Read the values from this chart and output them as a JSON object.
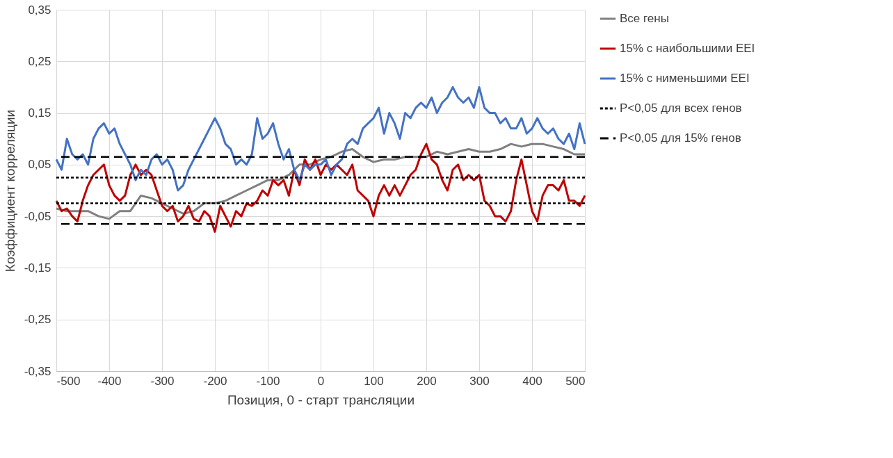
{
  "chart_data": {
    "type": "line",
    "xlabel": "Позиция, 0 - старт трансляции",
    "ylabel": "Коэффициент корреляции",
    "xlim": [
      -500,
      500
    ],
    "xticks": [
      -500,
      -400,
      -300,
      -200,
      -100,
      0,
      100,
      200,
      300,
      400,
      500
    ],
    "ylim": [
      -0.35,
      0.35
    ],
    "yticks": [
      {
        "value": -0.35,
        "label": "-0,35"
      },
      {
        "value": -0.25,
        "label": "-0,25"
      },
      {
        "value": -0.15,
        "label": "-0,15"
      },
      {
        "value": -0.05,
        "label": "-0,05"
      },
      {
        "value": 0.05,
        "label": "0,05"
      },
      {
        "value": 0.15,
        "label": "0,15"
      },
      {
        "value": 0.25,
        "label": "0,25"
      },
      {
        "value": 0.35,
        "label": "0,35"
      }
    ],
    "grid": true,
    "legend": "right",
    "line_style": "solid",
    "marker": "none",
    "series": [
      {
        "name": "Все гены",
        "color": "#808080",
        "x": [
          -500,
          -480,
          -460,
          -440,
          -420,
          -400,
          -380,
          -360,
          -340,
          -320,
          -300,
          -280,
          -260,
          -240,
          -220,
          -200,
          -180,
          -160,
          -140,
          -120,
          -100,
          -80,
          -60,
          -40,
          -20,
          0,
          20,
          40,
          60,
          80,
          100,
          120,
          140,
          160,
          180,
          200,
          220,
          240,
          260,
          280,
          300,
          320,
          340,
          360,
          380,
          400,
          420,
          440,
          460,
          480,
          500
        ],
        "values": [
          -0.035,
          -0.04,
          -0.04,
          -0.04,
          -0.05,
          -0.055,
          -0.04,
          -0.04,
          -0.01,
          -0.015,
          -0.025,
          -0.035,
          -0.045,
          -0.04,
          -0.025,
          -0.025,
          -0.02,
          -0.01,
          0.0,
          0.01,
          0.02,
          0.02,
          0.03,
          0.05,
          0.05,
          0.06,
          0.065,
          0.075,
          0.08,
          0.065,
          0.055,
          0.06,
          0.06,
          0.065,
          0.065,
          0.065,
          0.075,
          0.07,
          0.075,
          0.08,
          0.075,
          0.075,
          0.08,
          0.09,
          0.085,
          0.09,
          0.09,
          0.085,
          0.08,
          0.07,
          0.07
        ]
      },
      {
        "name": "15% с наибольшими EEI",
        "color": "#c00000",
        "x": [
          -500,
          -490,
          -480,
          -470,
          -460,
          -450,
          -440,
          -430,
          -420,
          -410,
          -400,
          -390,
          -380,
          -370,
          -360,
          -350,
          -340,
          -330,
          -320,
          -310,
          -300,
          -290,
          -280,
          -270,
          -260,
          -250,
          -240,
          -230,
          -220,
          -210,
          -200,
          -190,
          -180,
          -170,
          -160,
          -150,
          -140,
          -130,
          -120,
          -110,
          -100,
          -90,
          -80,
          -70,
          -60,
          -50,
          -40,
          -30,
          -20,
          -10,
          0,
          10,
          20,
          30,
          40,
          50,
          60,
          70,
          80,
          90,
          100,
          110,
          120,
          130,
          140,
          150,
          160,
          170,
          180,
          190,
          200,
          210,
          220,
          230,
          240,
          250,
          260,
          270,
          280,
          290,
          300,
          310,
          320,
          330,
          340,
          350,
          360,
          370,
          380,
          390,
          400,
          410,
          420,
          430,
          440,
          450,
          460,
          470,
          480,
          490,
          500
        ],
        "values": [
          -0.02,
          -0.04,
          -0.035,
          -0.05,
          -0.06,
          -0.02,
          0.01,
          0.03,
          0.04,
          0.05,
          0.01,
          -0.01,
          -0.02,
          -0.01,
          0.03,
          0.05,
          0.03,
          0.04,
          0.03,
          0.0,
          -0.03,
          -0.04,
          -0.03,
          -0.06,
          -0.05,
          -0.03,
          -0.055,
          -0.06,
          -0.04,
          -0.05,
          -0.08,
          -0.03,
          -0.05,
          -0.07,
          -0.04,
          -0.05,
          -0.025,
          -0.03,
          -0.02,
          0.0,
          -0.01,
          0.02,
          0.01,
          0.02,
          -0.01,
          0.04,
          0.01,
          0.06,
          0.04,
          0.06,
          0.03,
          0.05,
          0.04,
          0.05,
          0.04,
          0.03,
          0.05,
          0.0,
          -0.01,
          -0.02,
          -0.05,
          -0.01,
          0.01,
          -0.01,
          0.01,
          -0.01,
          0.01,
          0.03,
          0.04,
          0.07,
          0.09,
          0.06,
          0.05,
          0.02,
          0.0,
          0.04,
          0.05,
          0.02,
          0.03,
          0.02,
          0.03,
          -0.02,
          -0.03,
          -0.05,
          -0.05,
          -0.06,
          -0.04,
          0.02,
          0.06,
          0.01,
          -0.04,
          -0.06,
          -0.01,
          0.01,
          0.01,
          0.0,
          0.02,
          -0.02,
          -0.02,
          -0.03,
          -0.01
        ]
      },
      {
        "name": "15% с нименьшими EEI",
        "color": "#4472c4",
        "x": [
          -500,
          -490,
          -480,
          -470,
          -460,
          -450,
          -440,
          -430,
          -420,
          -410,
          -400,
          -390,
          -380,
          -370,
          -360,
          -350,
          -340,
          -330,
          -320,
          -310,
          -300,
          -290,
          -280,
          -270,
          -260,
          -250,
          -240,
          -230,
          -220,
          -210,
          -200,
          -190,
          -180,
          -170,
          -160,
          -150,
          -140,
          -130,
          -120,
          -110,
          -100,
          -90,
          -80,
          -70,
          -60,
          -50,
          -40,
          -30,
          -20,
          -10,
          0,
          10,
          20,
          30,
          40,
          50,
          60,
          70,
          80,
          90,
          100,
          110,
          120,
          130,
          140,
          150,
          160,
          170,
          180,
          190,
          200,
          210,
          220,
          230,
          240,
          250,
          260,
          270,
          280,
          290,
          300,
          310,
          320,
          330,
          340,
          350,
          360,
          370,
          380,
          390,
          400,
          410,
          420,
          430,
          440,
          450,
          460,
          470,
          480,
          490,
          500
        ],
        "values": [
          0.06,
          0.04,
          0.1,
          0.07,
          0.06,
          0.07,
          0.05,
          0.1,
          0.12,
          0.13,
          0.11,
          0.12,
          0.09,
          0.07,
          0.05,
          0.02,
          0.04,
          0.03,
          0.06,
          0.07,
          0.05,
          0.06,
          0.04,
          0.0,
          0.01,
          0.04,
          0.06,
          0.08,
          0.1,
          0.12,
          0.14,
          0.12,
          0.09,
          0.08,
          0.05,
          0.06,
          0.05,
          0.07,
          0.14,
          0.1,
          0.11,
          0.13,
          0.09,
          0.06,
          0.08,
          0.04,
          0.02,
          0.05,
          0.04,
          0.05,
          0.05,
          0.06,
          0.03,
          0.05,
          0.06,
          0.09,
          0.1,
          0.09,
          0.12,
          0.13,
          0.14,
          0.16,
          0.11,
          0.15,
          0.13,
          0.1,
          0.15,
          0.14,
          0.16,
          0.17,
          0.16,
          0.18,
          0.15,
          0.17,
          0.18,
          0.2,
          0.18,
          0.17,
          0.18,
          0.16,
          0.2,
          0.16,
          0.15,
          0.15,
          0.13,
          0.14,
          0.12,
          0.12,
          0.14,
          0.11,
          0.12,
          0.14,
          0.12,
          0.11,
          0.12,
          0.1,
          0.09,
          0.11,
          0.08,
          0.13,
          0.09
        ]
      }
    ],
    "ref_lines": [
      {
        "axis": "y",
        "value": 0.025,
        "label": "P<0,05 для всех генов",
        "color": "#000000",
        "line_style": "dotted"
      },
      {
        "axis": "y",
        "value": -0.025,
        "color": "#000000",
        "line_style": "dotted"
      },
      {
        "axis": "y",
        "value": 0.065,
        "label": "P<0,05 для 15% генов",
        "color": "#000000",
        "line_style": "dashed"
      },
      {
        "axis": "y",
        "value": -0.065,
        "color": "#000000",
        "line_style": "dashed"
      }
    ]
  }
}
